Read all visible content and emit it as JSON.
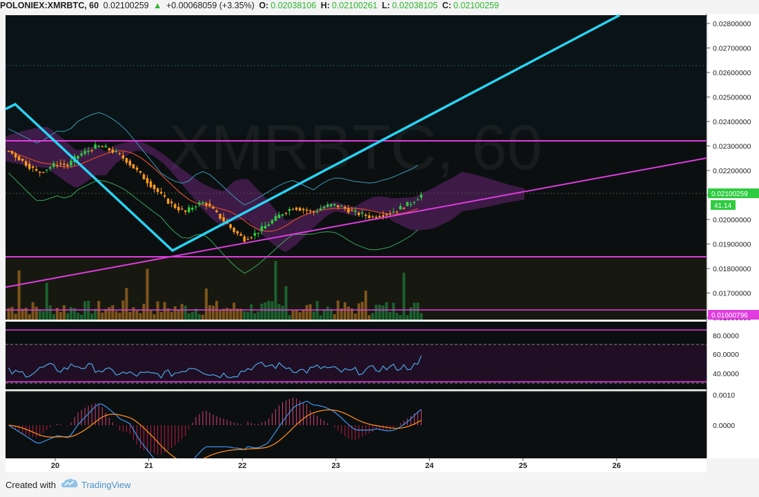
{
  "header": {
    "symbol": "POLONIEX:XMRBTC, 60",
    "last": "0.02100259",
    "change_arrow": "▲",
    "change": "+0.00068059 (+3.35%)",
    "o_label": "O:",
    "o_value": "0.02038106",
    "h_label": "H:",
    "h_value": "0.02100261",
    "l_label": "L:",
    "l_value": "0.02038105",
    "c_label": "C:",
    "c_value": "0.02100259"
  },
  "watermark": "XMRBTC, 60",
  "footer": {
    "created_with": "Created with",
    "brand": "TradingView"
  },
  "colors": {
    "up": "#2ecc40",
    "down": "#ff9a1a",
    "trend_cyan": "#27d4f5",
    "magenta": "#e03ce0",
    "bg": "#0b0f10"
  },
  "chart_data": {
    "type": "candlestick",
    "symbol": "XMRBTC",
    "interval": "60",
    "ylim": [
      0.0159,
      0.0288
    ],
    "y_ticks": [
      "0.02800000",
      "0.02700000",
      "0.02600000",
      "0.02500000",
      "0.02400000",
      "0.02300000",
      "0.02200000",
      "0.02100000",
      "0.02000000",
      "0.01900000",
      "0.01800000",
      "0.01700000",
      "0.01600000"
    ],
    "x_ticks": [
      "20",
      "21",
      "22",
      "23",
      "24",
      "25",
      "26"
    ],
    "last_price_label": "0.02100259",
    "indicator_label": "41.14",
    "level_label": "0.01600796",
    "horizontal_levels": [
      0.0232,
      0.01825,
      0.016008
    ],
    "rsi": {
      "ticks": [
        "80.0000",
        "60.0000",
        "40.0000"
      ],
      "last": 64
    },
    "macd": {
      "ticks": [
        "0.0010",
        "0.0000"
      ]
    },
    "price_series": [
      0.0228,
      0.0225,
      0.0222,
      0.0219,
      0.0221,
      0.0223,
      0.0222,
      0.0226,
      0.0228,
      0.023,
      0.0229,
      0.0227,
      0.0224,
      0.022,
      0.0216,
      0.0212,
      0.0208,
      0.0205,
      0.0203,
      0.0206,
      0.0207,
      0.0203,
      0.0199,
      0.0195,
      0.0192,
      0.0194,
      0.0197,
      0.02,
      0.0203,
      0.0205,
      0.0204,
      0.0203,
      0.0205,
      0.0206,
      0.0205,
      0.0203,
      0.0202,
      0.0201,
      0.0202,
      0.0203,
      0.0205,
      0.0207,
      0.021
    ]
  }
}
